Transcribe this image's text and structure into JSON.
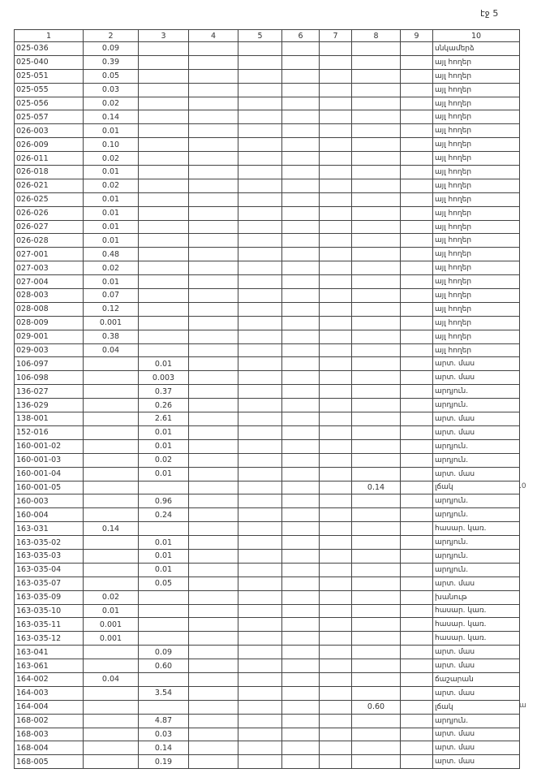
{
  "sheet_label": "էջ 5",
  "headers": [
    "1",
    "2",
    "3",
    "4",
    "5",
    "6",
    "7",
    "8",
    "9",
    "10"
  ],
  "side_notes": [
    ".0",
    "ա"
  ],
  "rows": [
    {
      "c1": "025-036",
      "c2": "0.09",
      "c3": "",
      "c8": "",
      "c10": "սնկամերձ"
    },
    {
      "c1": "025-040",
      "c2": "0.39",
      "c3": "",
      "c8": "",
      "c10": "այլ հողեր"
    },
    {
      "c1": "025-051",
      "c2": "0.05",
      "c3": "",
      "c8": "",
      "c10": "այլ հողեր"
    },
    {
      "c1": "025-055",
      "c2": "0.03",
      "c3": "",
      "c8": "",
      "c10": "այլ հողեր"
    },
    {
      "c1": "025-056",
      "c2": "0.02",
      "c3": "",
      "c8": "",
      "c10": "այլ հողեր"
    },
    {
      "c1": "025-057",
      "c2": "0.14",
      "c3": "",
      "c8": "",
      "c10": "այլ հողեր"
    },
    {
      "c1": "026-003",
      "c2": "0.01",
      "c3": "",
      "c8": "",
      "c10": "այլ հողեր"
    },
    {
      "c1": "026-009",
      "c2": "0.10",
      "c3": "",
      "c8": "",
      "c10": "այլ հողեր"
    },
    {
      "c1": "026-011",
      "c2": "0.02",
      "c3": "",
      "c8": "",
      "c10": "այլ հողեր"
    },
    {
      "c1": "026-018",
      "c2": "0.01",
      "c3": "",
      "c8": "",
      "c10": "այլ հողեր"
    },
    {
      "c1": "026-021",
      "c2": "0.02",
      "c3": "",
      "c8": "",
      "c10": "այլ հողեր"
    },
    {
      "c1": "026-025",
      "c2": "0.01",
      "c3": "",
      "c8": "",
      "c10": "այլ հողեր"
    },
    {
      "c1": "026-026",
      "c2": "0.01",
      "c3": "",
      "c8": "",
      "c10": "այլ հողեր"
    },
    {
      "c1": "026-027",
      "c2": "0.01",
      "c3": "",
      "c8": "",
      "c10": "այլ հողեր"
    },
    {
      "c1": "026-028",
      "c2": "0.01",
      "c3": "",
      "c8": "",
      "c10": "այլ հողեր"
    },
    {
      "c1": "027-001",
      "c2": "0.48",
      "c3": "",
      "c8": "",
      "c10": "այլ հողեր"
    },
    {
      "c1": "027-003",
      "c2": "0.02",
      "c3": "",
      "c8": "",
      "c10": "այլ հողեր"
    },
    {
      "c1": "027-004",
      "c2": "0.01",
      "c3": "",
      "c8": "",
      "c10": "այլ հողեր"
    },
    {
      "c1": "028-003",
      "c2": "0.07",
      "c3": "",
      "c8": "",
      "c10": "այլ հողեր"
    },
    {
      "c1": "028-008",
      "c2": "0.12",
      "c3": "",
      "c8": "",
      "c10": "այլ հողեր"
    },
    {
      "c1": "028-009",
      "c2": "0.001",
      "c3": "",
      "c8": "",
      "c10": "այլ հողեր"
    },
    {
      "c1": "029-001",
      "c2": "0.38",
      "c3": "",
      "c8": "",
      "c10": "այլ հողեր"
    },
    {
      "c1": "029-003",
      "c2": "0.04",
      "c3": "",
      "c8": "",
      "c10": "այլ հողեր"
    },
    {
      "c1": "106-097",
      "c2": "",
      "c3": "0.01",
      "c8": "",
      "c10": "արտ. մաս"
    },
    {
      "c1": "106-098",
      "c2": "",
      "c3": "0.003",
      "c8": "",
      "c10": "արտ. մաս"
    },
    {
      "c1": "136-027",
      "c2": "",
      "c3": "0.37",
      "c8": "",
      "c10": "արդյուն."
    },
    {
      "c1": "136-029",
      "c2": "",
      "c3": "0.26",
      "c8": "",
      "c10": "արդյուն."
    },
    {
      "c1": "138-001",
      "c2": "",
      "c3": "2.61",
      "c8": "",
      "c10": "արտ. մաս"
    },
    {
      "c1": "152-016",
      "c2": "",
      "c3": "0.01",
      "c8": "",
      "c10": "արտ. մաս"
    },
    {
      "c1": "160-001-02",
      "c2": "",
      "c3": "0.01",
      "c8": "",
      "c10": "արդյուն."
    },
    {
      "c1": "160-001-03",
      "c2": "",
      "c3": "0.02",
      "c8": "",
      "c10": "արդյուն."
    },
    {
      "c1": "160-001-04",
      "c2": "",
      "c3": "0.01",
      "c8": "",
      "c10": "արտ. մաս"
    },
    {
      "c1": "160-001-05",
      "c2": "",
      "c3": "",
      "c8": "0.14",
      "c10": "լճակ"
    },
    {
      "c1": "160-003",
      "c2": "",
      "c3": "0.96",
      "c8": "",
      "c10": "արդյուն."
    },
    {
      "c1": "160-004",
      "c2": "",
      "c3": "0.24",
      "c8": "",
      "c10": "արդյուն."
    },
    {
      "c1": "163-031",
      "c2": "0.14",
      "c3": "",
      "c8": "",
      "c10": "հասար. կառ."
    },
    {
      "c1": "163-035-02",
      "c2": "",
      "c3": "0.01",
      "c8": "",
      "c10": "արդյուն."
    },
    {
      "c1": "163-035-03",
      "c2": "",
      "c3": "0.01",
      "c8": "",
      "c10": "արդյուն."
    },
    {
      "c1": "163-035-04",
      "c2": "",
      "c3": "0.01",
      "c8": "",
      "c10": "արդյուն."
    },
    {
      "c1": "163-035-07",
      "c2": "",
      "c3": "0.05",
      "c8": "",
      "c10": "արտ. մաս"
    },
    {
      "c1": "163-035-09",
      "c2": "0.02",
      "c3": "",
      "c8": "",
      "c10": "խանութ"
    },
    {
      "c1": "163-035-10",
      "c2": "0.01",
      "c3": "",
      "c8": "",
      "c10": "հասար. կառ."
    },
    {
      "c1": "163-035-11",
      "c2": "0.001",
      "c3": "",
      "c8": "",
      "c10": "հասար. կառ."
    },
    {
      "c1": "163-035-12",
      "c2": "0.001",
      "c3": "",
      "c8": "",
      "c10": "հասար. կառ."
    },
    {
      "c1": "163-041",
      "c2": "",
      "c3": "0.09",
      "c8": "",
      "c10": "արտ. մաս"
    },
    {
      "c1": "163-061",
      "c2": "",
      "c3": "0.60",
      "c8": "",
      "c10": "արտ. մաս"
    },
    {
      "c1": "164-002",
      "c2": "0.04",
      "c3": "",
      "c8": "",
      "c10": "ճաշարան"
    },
    {
      "c1": "164-003",
      "c2": "",
      "c3": "3.54",
      "c8": "",
      "c10": "արտ. մաս"
    },
    {
      "c1": "164-004",
      "c2": "",
      "c3": "",
      "c8": "0.60",
      "c10": "լճակ"
    },
    {
      "c1": "168-002",
      "c2": "",
      "c3": "4.87",
      "c8": "",
      "c10": "արդյուն."
    },
    {
      "c1": "168-003",
      "c2": "",
      "c3": "0.03",
      "c8": "",
      "c10": "արտ. մաս"
    },
    {
      "c1": "168-004",
      "c2": "",
      "c3": "0.14",
      "c8": "",
      "c10": "արտ. մաս"
    },
    {
      "c1": "168-005",
      "c2": "",
      "c3": "0.19",
      "c8": "",
      "c10": "արտ. մաս"
    }
  ]
}
